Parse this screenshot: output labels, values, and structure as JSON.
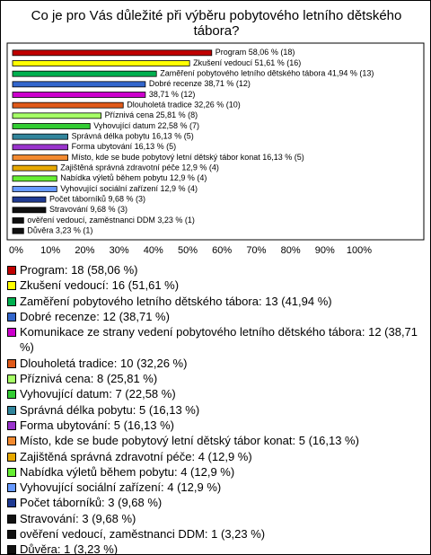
{
  "chart_data": {
    "type": "bar",
    "orientation": "horizontal",
    "title": "Co je pro Vás důležité při výběru pobytového letního dětského tábora?",
    "categories": [
      "Program",
      "Zkušení vedoucí",
      "Zaměření pobytového letního dětského tábora",
      "Dobré recenze",
      "Komunikace ze strany vedení pobytového letního dětského tábora",
      "Dlouholetá tradice",
      "Příznivá cena",
      "Vyhovující datum",
      "Správná délka pobytu",
      "Forma ubytování",
      "Místo, kde se bude pobytový letní dětský tábor konat",
      "Zajištěná správná zdravotní péče",
      "Nabídka výletů během pobytu",
      "Vyhovující sociální zařízení",
      "Počet táborníků",
      "Stravování",
      "ověření vedoucí, zaměstnanci DDM",
      "Důvěra"
    ],
    "values": [
      58.06,
      51.61,
      41.94,
      38.71,
      38.71,
      32.26,
      25.81,
      22.58,
      16.13,
      16.13,
      16.13,
      12.9,
      12.9,
      12.9,
      9.68,
      9.68,
      3.23,
      3.23
    ],
    "value_labels": [
      "Program 58,06 % (18)",
      "Zkušení vedoucí 51,61 % (16)",
      "Zaměření pobytového letního dětského tábora 41,94 % (13)",
      "Dobré recenze 38,71 % (12)",
      "38,71 % (12)",
      "Dlouholetá tradice 32,26 % (10)",
      "Příznivá cena 25,81 % (8)",
      "Vyhovující datum 22,58 % (7)",
      "Správná délka pobytu 16,13 % (5)",
      "Forma ubytování 16,13 % (5)",
      "Místo, kde se bude pobytový letní dětský tábor konat 16,13 % (5)",
      "Zajištěná správná zdravotní péče 12,9 % (4)",
      "Nabídka výletů během pobytu 12,9 % (4)",
      "Vyhovující sociální zařízení 12,9 % (4)",
      "Počet táborníků 9,68 % (3)",
      "Stravování 9,68 % (3)",
      "ověření vedoucí, zaměstnanci DDM 3,23 % (1)",
      "Důvěra 3,23 % (1)"
    ],
    "legend_labels": [
      "Program: 18 (58,06 %)",
      "Zkušení vedoucí: 16 (51,61 %)",
      "Zaměření pobytového letního dětského tábora: 13 (41,94 %)",
      "Dobré recenze: 12 (38,71 %)",
      "Komunikace ze strany vedení pobytového letního dětského tábora: 12 (38,71 %)",
      "Dlouholetá tradice: 10 (32,26 %)",
      "Příznivá cena: 8 (25,81 %)",
      "Vyhovující datum: 7 (22,58 %)",
      "Správná délka pobytu: 5 (16,13 %)",
      "Forma ubytování: 5 (16,13 %)",
      "Místo, kde se bude pobytový letní dětský tábor konat: 5 (16,13 %)",
      "Zajištěná správná zdravotní péče: 4 (12,9 %)",
      "Nabídka výletů během pobytu: 4 (12,9 %)",
      "Vyhovující sociální zařízení: 4 (12,9 %)",
      "Počet táborníků: 3 (9,68 %)",
      "Stravování: 3 (9,68 %)",
      "ověření vedoucí, zaměstnanci DDM: 1 (3,23 %)",
      "Důvěra: 1 (3,23 %)"
    ],
    "colors": [
      "#c00000",
      "#ffff00",
      "#00b050",
      "#3366cc",
      "#cc00cc",
      "#e05a1a",
      "#a6ff66",
      "#33cc33",
      "#31859c",
      "#9933cc",
      "#f28a30",
      "#e6a800",
      "#66ee33",
      "#6699ff",
      "#1f3a93",
      "#111111",
      "#111111",
      "#111111"
    ],
    "xlim": [
      0,
      100
    ],
    "xticks": [
      {
        "value": 0,
        "label": "0%"
      },
      {
        "value": 10,
        "label": "10%"
      },
      {
        "value": 20,
        "label": "20%"
      },
      {
        "value": 30,
        "label": "30%"
      },
      {
        "value": 40,
        "label": "40%"
      },
      {
        "value": 50,
        "label": "50%"
      },
      {
        "value": 60,
        "label": "60%"
      },
      {
        "value": 70,
        "label": "70%"
      },
      {
        "value": 80,
        "label": "80%"
      },
      {
        "value": 90,
        "label": "90%"
      },
      {
        "value": 100,
        "label": "100%"
      }
    ],
    "grid": false
  }
}
